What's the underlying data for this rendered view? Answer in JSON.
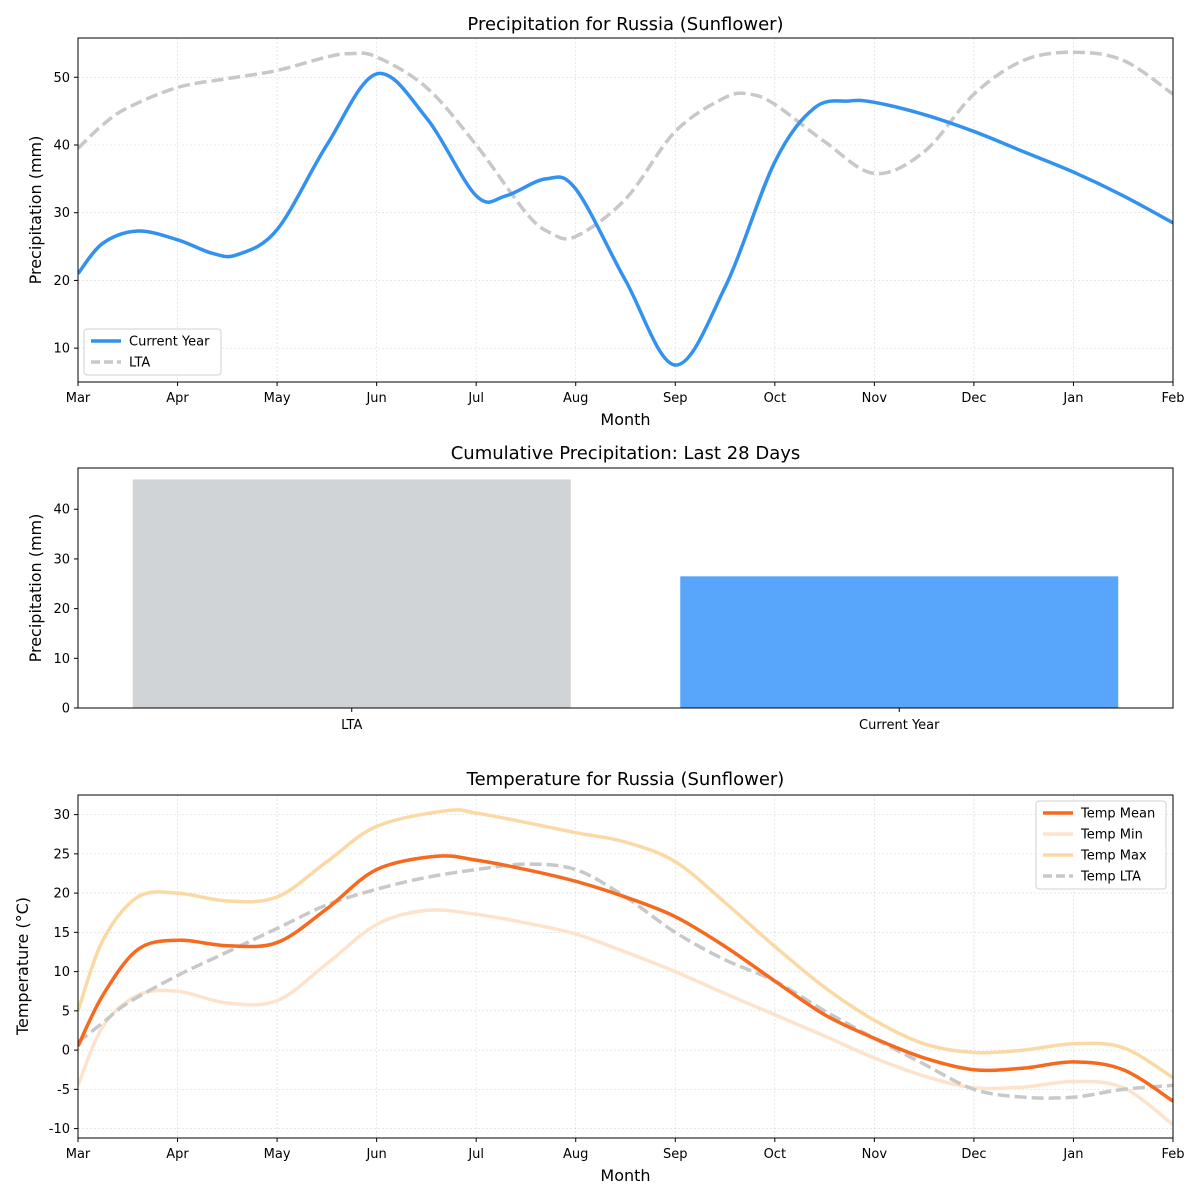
{
  "chart_data": [
    {
      "type": "line",
      "title": "Precipitation for Russia (Sunflower)",
      "xlabel": "Month",
      "ylabel": "Precipitation (mm)",
      "x_ticks": [
        "Mar",
        "Apr",
        "May",
        "Jun",
        "Jul",
        "Aug",
        "Sep",
        "Oct",
        "Nov",
        "Dec",
        "Jan",
        "Feb"
      ],
      "xlim": [
        0,
        11
      ],
      "ylim": [
        5,
        55.8
      ],
      "y_ticks": [
        10,
        20,
        30,
        40,
        50
      ],
      "grid": true,
      "legend_position": "lower-left",
      "series": [
        {
          "name": "Current Year",
          "color": "#3391f0",
          "style": "solid",
          "x": [
            0,
            0.25,
            0.6,
            1,
            1.35,
            1.6,
            2,
            2.5,
            3,
            3.5,
            4,
            4.3,
            4.7,
            5,
            5.5,
            6,
            6.5,
            7,
            7.4,
            7.75,
            8,
            8.5,
            9,
            9.5,
            10,
            10.5,
            11
          ],
          "y": [
            21,
            25.5,
            27.3,
            26,
            24,
            23.8,
            27.5,
            40,
            50.5,
            44,
            32.5,
            32.5,
            35,
            33.5,
            20,
            7.5,
            19,
            37.5,
            45.5,
            46.5,
            46.3,
            44.5,
            42,
            39,
            36,
            32.5,
            28.5
          ]
        },
        {
          "name": "LTA",
          "color": "#c8c8c8",
          "style": "dashed",
          "x": [
            0,
            0.25,
            0.5,
            1,
            1.5,
            2,
            2.5,
            2.75,
            3,
            3.5,
            4,
            4.5,
            4.75,
            5,
            5.5,
            6,
            6.5,
            6.75,
            7,
            7.5,
            8,
            8.5,
            9,
            9.5,
            10,
            10.5,
            11
          ],
          "y": [
            39.5,
            43,
            45.5,
            48.5,
            49.8,
            51,
            53,
            53.5,
            53,
            48.5,
            40,
            30,
            27,
            26.5,
            32,
            42,
            47,
            47.5,
            46,
            40.5,
            35.8,
            39,
            47.5,
            52.5,
            53.7,
            52.5,
            47.5
          ]
        }
      ]
    },
    {
      "type": "bar",
      "title": "Cumulative Precipitation: Last 28 Days",
      "xlabel": "",
      "ylabel": "Precipitation (mm)",
      "categories": [
        "LTA",
        "Current Year"
      ],
      "values": [
        46,
        26.5
      ],
      "colors": [
        "#d0d4d7",
        "#58a6fb"
      ],
      "ylim": [
        0,
        48.3
      ],
      "y_ticks": [
        0,
        10,
        20,
        30,
        40
      ],
      "grid": false
    },
    {
      "type": "line",
      "title": "Temperature for Russia (Sunflower)",
      "xlabel": "Month",
      "ylabel": "Temperature (°C)",
      "x_ticks": [
        "Mar",
        "Apr",
        "May",
        "Jun",
        "Jul",
        "Aug",
        "Sep",
        "Oct",
        "Nov",
        "Dec",
        "Jan",
        "Feb"
      ],
      "xlim": [
        0,
        11
      ],
      "ylim": [
        -11.2,
        32.5
      ],
      "y_ticks": [
        -10,
        -5,
        0,
        5,
        10,
        15,
        20,
        25,
        30
      ],
      "grid": true,
      "legend_position": "top-right",
      "series": [
        {
          "name": "Temp Mean",
          "color": "#f56a1f",
          "style": "solid",
          "x": [
            0,
            0.25,
            0.6,
            1,
            1.5,
            2,
            2.5,
            3,
            3.6,
            4,
            4.5,
            5,
            5.5,
            6,
            6.5,
            7,
            7.5,
            8,
            8.5,
            9,
            9.5,
            10,
            10.5,
            11
          ],
          "y": [
            0.5,
            7,
            12.8,
            14,
            13.3,
            13.7,
            18,
            23,
            24.7,
            24.2,
            23,
            21.5,
            19.5,
            17,
            13.2,
            8.8,
            4.5,
            1.5,
            -1,
            -2.5,
            -2.3,
            -1.5,
            -2.5,
            -6.5
          ]
        },
        {
          "name": "Temp Min",
          "color": "#fde3cc",
          "style": "solid",
          "x": [
            0,
            0.25,
            0.6,
            1,
            1.5,
            2,
            2.5,
            3,
            3.5,
            4,
            4.5,
            5,
            5.5,
            6,
            6.5,
            7,
            7.5,
            8,
            8.5,
            9,
            9.5,
            10,
            10.5,
            11
          ],
          "y": [
            -4.5,
            3,
            7,
            7.5,
            6,
            6.3,
            11,
            16,
            17.8,
            17.3,
            16.2,
            14.8,
            12.5,
            10,
            7.2,
            4.5,
            1.8,
            -1,
            -3.3,
            -4.8,
            -4.7,
            -4,
            -4.8,
            -9.5
          ]
        },
        {
          "name": "Temp Max",
          "color": "#fbd9a5",
          "style": "solid",
          "x": [
            0,
            0.25,
            0.6,
            1,
            1.5,
            2,
            2.5,
            3,
            3.7,
            4,
            4.5,
            5,
            5.5,
            6,
            6.5,
            7,
            7.5,
            8,
            8.5,
            9,
            9.5,
            10,
            10.5,
            11
          ],
          "y": [
            5,
            14,
            19.5,
            20,
            19,
            19.5,
            24,
            28.5,
            30.5,
            30.2,
            29,
            27.7,
            26.5,
            24,
            18.8,
            13.2,
            8,
            3.8,
            0.8,
            -0.3,
            0,
            0.8,
            0.3,
            -3.5
          ]
        },
        {
          "name": "Temp LTA",
          "color": "#c8c8c8",
          "style": "dashed",
          "x": [
            0,
            0.25,
            0.5,
            1,
            1.5,
            2,
            2.5,
            3,
            3.5,
            4,
            4.5,
            5,
            5.5,
            6,
            6.5,
            7,
            7.5,
            8,
            8.5,
            9,
            9.5,
            10,
            10.5,
            11
          ],
          "y": [
            1,
            3.5,
            6,
            9.5,
            12.5,
            15.5,
            18.5,
            20.5,
            22,
            23,
            23.7,
            23,
            19.5,
            15,
            11.5,
            8.8,
            5,
            1.5,
            -1.8,
            -5,
            -6,
            -6,
            -5,
            -4.5
          ]
        }
      ]
    }
  ]
}
